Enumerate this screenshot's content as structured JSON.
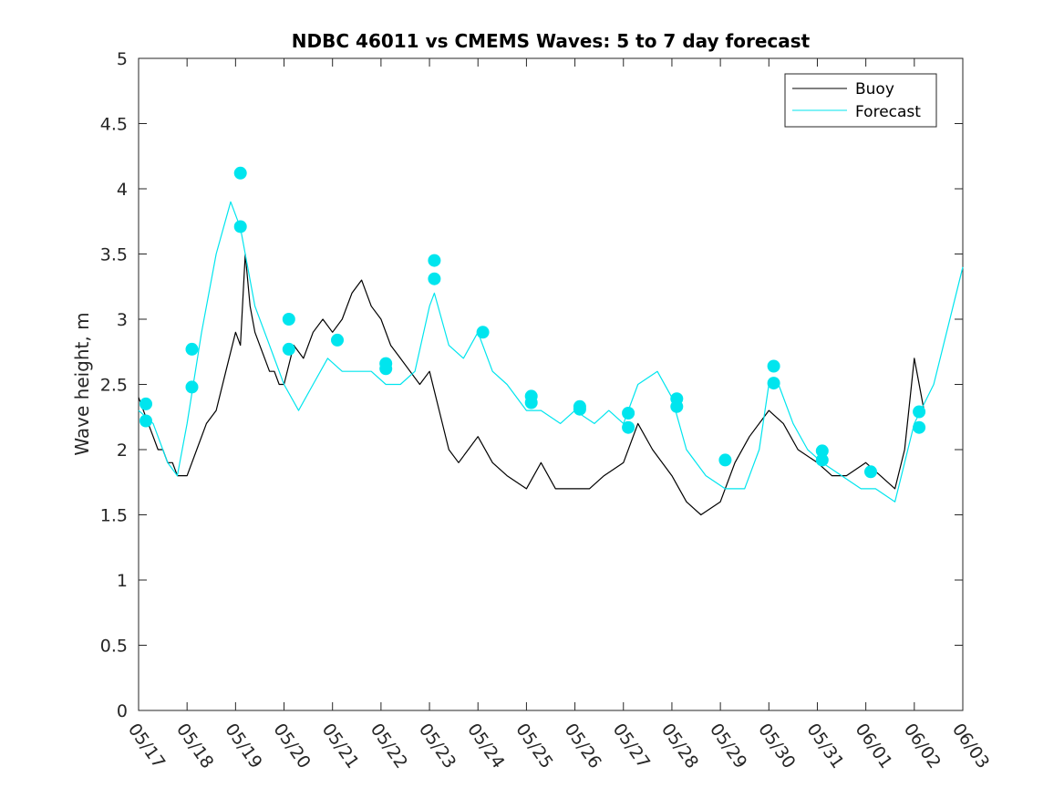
{
  "chart_data": {
    "type": "line",
    "title": "NDBC 46011 vs CMEMS Waves: 5 to 7 day forecast",
    "xlabel": "",
    "ylabel": "Wave height, m",
    "xlim": [
      "05/17",
      "06/03"
    ],
    "ylim": [
      0,
      5
    ],
    "x_ticks": [
      "05/17",
      "05/18",
      "05/19",
      "05/20",
      "05/21",
      "05/22",
      "05/23",
      "05/24",
      "05/25",
      "05/26",
      "05/27",
      "05/28",
      "05/29",
      "05/30",
      "05/31",
      "06/01",
      "06/02",
      "06/03"
    ],
    "y_ticks": [
      "0",
      "0.5",
      "1",
      "1.5",
      "2",
      "2.5",
      "3",
      "3.5",
      "4",
      "4.5",
      "5"
    ],
    "legend": {
      "position": "top-right",
      "entries": [
        "Buoy",
        "Forecast"
      ]
    },
    "colors": {
      "buoy": "#000000",
      "forecast": "#00e5ee"
    },
    "series": [
      {
        "name": "Buoy",
        "x_day": [
          0,
          0.1,
          0.2,
          0.3,
          0.4,
          0.5,
          0.6,
          0.7,
          0.8,
          0.9,
          1.0,
          1.2,
          1.4,
          1.6,
          1.8,
          2.0,
          2.1,
          2.2,
          2.3,
          2.4,
          2.5,
          2.6,
          2.7,
          2.8,
          2.9,
          3.0,
          3.2,
          3.4,
          3.6,
          3.8,
          4.0,
          4.2,
          4.4,
          4.6,
          4.8,
          5.0,
          5.2,
          5.4,
          5.6,
          5.8,
          6.0,
          6.2,
          6.4,
          6.6,
          6.8,
          7.0,
          7.3,
          7.6,
          8.0,
          8.3,
          8.6,
          9.0,
          9.3,
          9.6,
          10.0,
          10.3,
          10.6,
          11.0,
          11.3,
          11.6,
          12.0,
          12.3,
          12.6,
          13.0,
          13.3,
          13.6,
          14.0,
          14.3,
          14.6,
          15.0,
          15.3,
          15.6,
          15.8,
          16.0,
          16.2
        ],
        "y": [
          2.4,
          2.3,
          2.2,
          2.1,
          2.0,
          2.0,
          1.9,
          1.9,
          1.8,
          1.8,
          1.8,
          2.0,
          2.2,
          2.3,
          2.6,
          2.9,
          2.8,
          3.5,
          3.1,
          2.9,
          2.8,
          2.7,
          2.6,
          2.6,
          2.5,
          2.5,
          2.8,
          2.7,
          2.9,
          3.0,
          2.9,
          3.0,
          3.2,
          3.3,
          3.1,
          3.0,
          2.8,
          2.7,
          2.6,
          2.5,
          2.6,
          2.3,
          2.0,
          1.9,
          2.0,
          2.1,
          1.9,
          1.8,
          1.7,
          1.9,
          1.7,
          1.7,
          1.7,
          1.8,
          1.9,
          2.2,
          2.0,
          1.8,
          1.6,
          1.5,
          1.6,
          1.9,
          2.1,
          2.3,
          2.2,
          2.0,
          1.9,
          1.8,
          1.8,
          1.9,
          1.8,
          1.7,
          2.0,
          2.7,
          2.3
        ]
      },
      {
        "name": "Forecast",
        "x_day": [
          0,
          0.3,
          0.6,
          0.8,
          1.0,
          1.3,
          1.6,
          1.9,
          2.1,
          2.4,
          2.7,
          3.0,
          3.3,
          3.6,
          3.9,
          4.2,
          4.5,
          4.8,
          5.1,
          5.4,
          5.7,
          6.0,
          6.1,
          6.4,
          6.7,
          7.0,
          7.3,
          7.6,
          8.0,
          8.3,
          8.7,
          9.0,
          9.4,
          9.7,
          10.0,
          10.3,
          10.7,
          11.0,
          11.3,
          11.7,
          12.1,
          12.5,
          12.8,
          13.0,
          13.2,
          13.5,
          13.8,
          14.1,
          14.5,
          14.9,
          15.2,
          15.6,
          16.0,
          16.4,
          17.0
        ],
        "y": [
          2.3,
          2.2,
          1.9,
          1.8,
          2.2,
          2.9,
          3.5,
          3.9,
          3.7,
          3.1,
          2.8,
          2.5,
          2.3,
          2.5,
          2.7,
          2.6,
          2.6,
          2.6,
          2.5,
          2.5,
          2.6,
          3.1,
          3.2,
          2.8,
          2.7,
          2.9,
          2.6,
          2.5,
          2.3,
          2.3,
          2.2,
          2.3,
          2.2,
          2.3,
          2.2,
          2.5,
          2.6,
          2.4,
          2.0,
          1.8,
          1.7,
          1.7,
          2.0,
          2.5,
          2.5,
          2.2,
          2.0,
          1.9,
          1.8,
          1.7,
          1.7,
          1.6,
          2.2,
          2.5,
          3.4
        ]
      }
    ],
    "forecast_markers": {
      "x_day": [
        0.15,
        0.15,
        1.1,
        1.1,
        2.1,
        2.1,
        3.1,
        3.1,
        4.1,
        5.1,
        5.1,
        6.1,
        6.1,
        7.1,
        8.1,
        8.1,
        9.1,
        9.1,
        10.1,
        10.1,
        11.1,
        11.1,
        12.1,
        13.1,
        13.1,
        14.1,
        14.1,
        15.1,
        16.1,
        16.1
      ],
      "y": [
        2.35,
        2.22,
        2.77,
        2.48,
        4.12,
        3.71,
        3.0,
        2.77,
        2.84,
        2.66,
        2.62,
        3.45,
        3.31,
        2.9,
        2.41,
        2.36,
        2.33,
        2.31,
        2.28,
        2.17,
        2.39,
        2.33,
        1.92,
        2.64,
        2.51,
        1.99,
        1.92,
        1.83,
        2.29,
        2.17
      ]
    }
  }
}
